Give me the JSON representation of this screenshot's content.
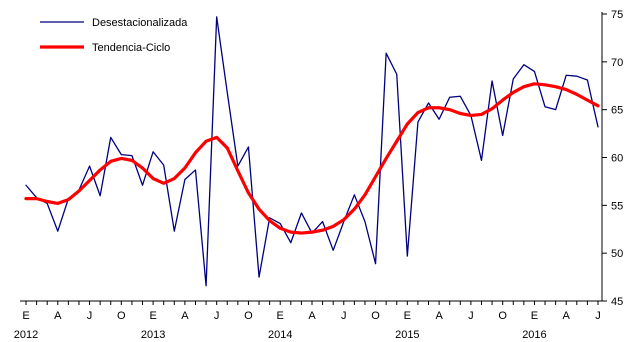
{
  "chart_data": {
    "type": "line",
    "title": "",
    "xlabel": "",
    "ylabel": "",
    "ylim": [
      45,
      75
    ],
    "y_axis_position": "right",
    "y_ticks": [
      45,
      50,
      55,
      60,
      65,
      70,
      75
    ],
    "month_letters": [
      "E",
      "A",
      "J",
      "O"
    ],
    "years": [
      "2012",
      "2013",
      "2014",
      "2015",
      "2016"
    ],
    "x_start": "2012-01",
    "grid": false,
    "legend_position": "top-left",
    "series": [
      {
        "name": "Desestacionalizada",
        "color": "#000080",
        "values": [
          57.1,
          55.8,
          55.2,
          52.3,
          55.7,
          56.6,
          59.1,
          56.0,
          62.1,
          60.3,
          60.2,
          57.1,
          60.6,
          59.2,
          52.3,
          57.7,
          58.7,
          46.6,
          74.7,
          66.8,
          59.1,
          61.1,
          47.5,
          53.7,
          53.1,
          51.1,
          54.2,
          52.1,
          53.3,
          50.3,
          53.3,
          56.1,
          53.3,
          48.9,
          70.9,
          68.7,
          49.7,
          63.7,
          65.7,
          64.0,
          66.3,
          66.4,
          64.4,
          59.7,
          68.0,
          62.3,
          68.2,
          69.7,
          69.0,
          65.3,
          65.0,
          68.6,
          68.5,
          68.1,
          63.2
        ]
      },
      {
        "name": "Tendencia-Ciclo",
        "color": "#ff0000",
        "values": [
          55.7,
          55.7,
          55.4,
          55.2,
          55.6,
          56.5,
          57.6,
          58.7,
          59.6,
          59.9,
          59.7,
          58.9,
          57.8,
          57.3,
          57.8,
          58.9,
          60.5,
          61.7,
          62.1,
          61.0,
          58.6,
          56.3,
          54.6,
          53.4,
          52.6,
          52.2,
          52.1,
          52.2,
          52.4,
          52.8,
          53.5,
          54.6,
          56.1,
          58.0,
          59.9,
          61.7,
          63.5,
          64.7,
          65.2,
          65.2,
          65.0,
          64.6,
          64.4,
          64.5,
          65.1,
          66.0,
          66.8,
          67.4,
          67.7,
          67.6,
          67.4,
          67.1,
          66.6,
          66.0,
          65.4
        ]
      }
    ]
  }
}
